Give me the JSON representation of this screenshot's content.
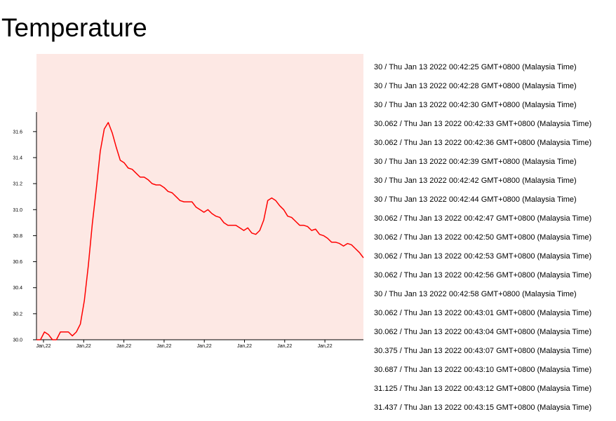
{
  "heading": "Temperature",
  "chart_data": {
    "type": "line",
    "xtick_labels": [
      "Jan,22",
      "Jan,22",
      "Jan,22",
      "Jan,22",
      "Jan,22",
      "Jan,22",
      "Jan,22",
      "Jan,22"
    ],
    "color": "#ff0000",
    "values": [
      30.0,
      30.0,
      30.06,
      30.04,
      30.0,
      30.0,
      30.06,
      30.06,
      30.06,
      30.03,
      30.06,
      30.12,
      30.3,
      30.57,
      30.89,
      31.16,
      31.45,
      31.62,
      31.67,
      31.59,
      31.48,
      31.38,
      31.36,
      31.32,
      31.31,
      31.28,
      31.25,
      31.25,
      31.23,
      31.2,
      31.19,
      31.19,
      31.17,
      31.14,
      31.13,
      31.1,
      31.07,
      31.06,
      31.06,
      31.06,
      31.02,
      31.0,
      30.98,
      31.0,
      30.97,
      30.95,
      30.94,
      30.9,
      30.88,
      30.88,
      30.88,
      30.86,
      30.84,
      30.86,
      30.82,
      30.81,
      30.84,
      30.92,
      31.07,
      31.09,
      31.07,
      31.03,
      31.0,
      30.95,
      30.94,
      30.91,
      30.88,
      30.88,
      30.87,
      30.84,
      30.85,
      30.81,
      30.8,
      30.78,
      30.75,
      30.75,
      30.74,
      30.72,
      30.74,
      30.73,
      30.7,
      30.67,
      30.63
    ],
    "ylim": [
      30.0,
      31.75
    ],
    "yticks": [
      {
        "value": 30.0,
        "label": "30.0"
      },
      30.2,
      30.4,
      30.6,
      30.8,
      {
        "value": 31.0,
        "label": "31.0"
      },
      31.2,
      31.4,
      31.6
    ]
  },
  "readings": [
    "30 / Thu Jan 13 2022 00:42:25 GMT+0800 (Malaysia Time)",
    "30 / Thu Jan 13 2022 00:42:28 GMT+0800 (Malaysia Time)",
    "30 / Thu Jan 13 2022 00:42:30 GMT+0800 (Malaysia Time)",
    "30.062 / Thu Jan 13 2022 00:42:33 GMT+0800 (Malaysia Time)",
    "30.062 / Thu Jan 13 2022 00:42:36 GMT+0800 (Malaysia Time)",
    "30 / Thu Jan 13 2022 00:42:39 GMT+0800 (Malaysia Time)",
    "30 / Thu Jan 13 2022 00:42:42 GMT+0800 (Malaysia Time)",
    "30 / Thu Jan 13 2022 00:42:44 GMT+0800 (Malaysia Time)",
    "30.062 / Thu Jan 13 2022 00:42:47 GMT+0800 (Malaysia Time)",
    "30.062 / Thu Jan 13 2022 00:42:50 GMT+0800 (Malaysia Time)",
    "30.062 / Thu Jan 13 2022 00:42:53 GMT+0800 (Malaysia Time)",
    "30.062 / Thu Jan 13 2022 00:42:56 GMT+0800 (Malaysia Time)",
    "30 / Thu Jan 13 2022 00:42:58 GMT+0800 (Malaysia Time)",
    "30.062 / Thu Jan 13 2022 00:43:01 GMT+0800 (Malaysia Time)",
    "30.062 / Thu Jan 13 2022 00:43:04 GMT+0800 (Malaysia Time)",
    "30.375 / Thu Jan 13 2022 00:43:07 GMT+0800 (Malaysia Time)",
    "30.687 / Thu Jan 13 2022 00:43:10 GMT+0800 (Malaysia Time)",
    "31.125 / Thu Jan 13 2022 00:43:12 GMT+0800 (Malaysia Time)",
    "31.437 / Thu Jan 13 2022 00:43:15 GMT+0800 (Malaysia Time)"
  ]
}
